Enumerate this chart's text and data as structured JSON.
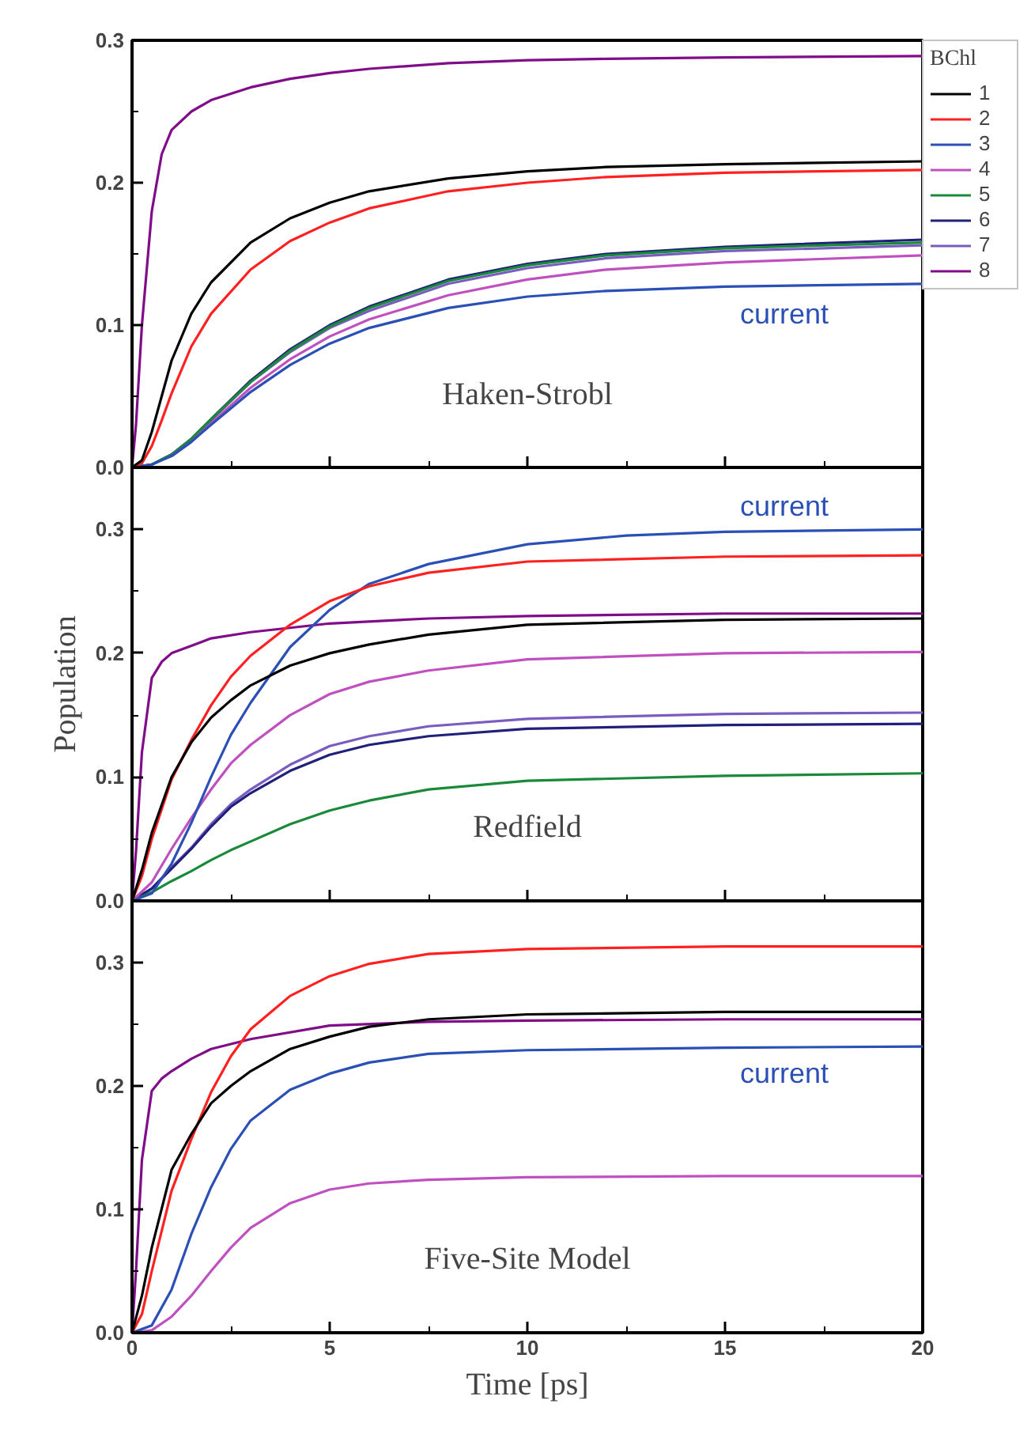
{
  "chart_data": [
    {
      "type": "line",
      "legend": "right",
      "legend_title": "BChl",
      "grid": false,
      "tick_labels": "y",
      "line_style": "solid",
      "xlim": [
        0,
        20
      ],
      "xticks": [
        0,
        {
          "value": 2.5,
          "label": null
        },
        5,
        {
          "value": 7.5,
          "label": null
        },
        10,
        {
          "value": 12.5,
          "label": null
        },
        15,
        {
          "value": 17.5,
          "label": null
        },
        20
      ],
      "ylim": [
        0,
        0.3
      ],
      "yticks": [
        {
          "value": 0,
          "label": "0.0"
        },
        {
          "value": 0.05,
          "label": null
        },
        0.1,
        {
          "value": 0.15,
          "label": null
        },
        0.2,
        {
          "value": 0.25,
          "label": null
        },
        0.3
      ],
      "annotations": [
        "Haken-Strobl",
        "current"
      ],
      "series": [
        {
          "name": "1",
          "color": "#000000",
          "x": [
            0,
            0.25,
            0.5,
            0.75,
            1,
            1.5,
            2,
            3,
            4,
            5,
            6,
            8,
            10,
            12,
            15,
            20
          ],
          "values": [
            0,
            0.005,
            0.025,
            0.05,
            0.075,
            0.108,
            0.13,
            0.158,
            0.175,
            0.186,
            0.194,
            0.203,
            0.208,
            0.211,
            0.213,
            0.215
          ]
        },
        {
          "name": "2",
          "color": "#ff2020",
          "x": [
            0,
            0.25,
            0.5,
            0.75,
            1,
            1.5,
            2,
            3,
            4,
            5,
            6,
            8,
            10,
            12,
            15,
            20
          ],
          "values": [
            0,
            0.003,
            0.015,
            0.033,
            0.052,
            0.085,
            0.108,
            0.139,
            0.159,
            0.172,
            0.182,
            0.194,
            0.2,
            0.204,
            0.207,
            0.209
          ]
        },
        {
          "name": "3",
          "color": "#2a4fb5",
          "x": [
            0,
            0.5,
            1,
            1.5,
            2,
            3,
            4,
            5,
            6,
            8,
            10,
            12,
            15,
            20
          ],
          "values": [
            0,
            0.002,
            0.008,
            0.018,
            0.03,
            0.053,
            0.072,
            0.087,
            0.098,
            0.112,
            0.12,
            0.124,
            0.127,
            0.129
          ]
        },
        {
          "name": "4",
          "color": "#c050c0",
          "x": [
            1,
            1.5,
            2,
            3,
            4,
            5,
            6,
            8,
            10,
            12,
            15,
            20
          ],
          "values": [
            0.008,
            0.018,
            0.031,
            0.056,
            0.076,
            0.092,
            0.104,
            0.121,
            0.132,
            0.139,
            0.144,
            0.149
          ]
        },
        {
          "name": "5",
          "color": "#1a8a3a",
          "x": [
            0,
            0.5,
            1,
            1.5,
            2,
            3,
            4,
            5,
            6,
            8,
            10,
            12,
            15,
            20
          ],
          "values": [
            0,
            0.002,
            0.009,
            0.02,
            0.034,
            0.06,
            0.082,
            0.099,
            0.112,
            0.131,
            0.142,
            0.149,
            0.154,
            0.158
          ]
        },
        {
          "name": "6",
          "color": "#20207a",
          "x": [
            0,
            0.5,
            1,
            1.5,
            2,
            3,
            4,
            5,
            6,
            8,
            10,
            12,
            15,
            20
          ],
          "values": [
            0,
            0.002,
            0.009,
            0.02,
            0.034,
            0.061,
            0.083,
            0.1,
            0.113,
            0.132,
            0.143,
            0.15,
            0.155,
            0.16
          ]
        },
        {
          "name": "7",
          "color": "#7a5cc0",
          "x": [
            0,
            0.5,
            1,
            1.5,
            2,
            3,
            4,
            5,
            6,
            8,
            10,
            12,
            15,
            20
          ],
          "values": [
            0,
            0.002,
            0.009,
            0.02,
            0.033,
            0.06,
            0.081,
            0.098,
            0.11,
            0.129,
            0.14,
            0.147,
            0.152,
            0.156
          ]
        },
        {
          "name": "8",
          "color": "#800c8a",
          "x": [
            0,
            0.1,
            0.25,
            0.5,
            0.75,
            1,
            1.5,
            2,
            3,
            4,
            5,
            6,
            8,
            10,
            12,
            15,
            20
          ],
          "values": [
            0,
            0.03,
            0.1,
            0.18,
            0.22,
            0.237,
            0.25,
            0.258,
            0.267,
            0.273,
            0.277,
            0.28,
            0.284,
            0.286,
            0.287,
            0.288,
            0.289
          ]
        }
      ]
    },
    {
      "type": "line",
      "legend": false,
      "grid": false,
      "tick_labels": "y",
      "line_style": "solid",
      "ylabel": "Population",
      "xlim": [
        0,
        20
      ],
      "xticks": [
        0,
        {
          "value": 2.5,
          "label": null
        },
        5,
        {
          "value": 7.5,
          "label": null
        },
        10,
        {
          "value": 12.5,
          "label": null
        },
        15,
        {
          "value": 17.5,
          "label": null
        },
        20
      ],
      "ylim": [
        0,
        0.35
      ],
      "yticks": [
        {
          "value": 0,
          "label": "0.0"
        },
        {
          "value": 0.05,
          "label": null
        },
        0.1,
        {
          "value": 0.15,
          "label": null
        },
        0.2,
        {
          "value": 0.25,
          "label": null
        },
        0.3
      ],
      "annotations": [
        "Redfield",
        "current"
      ],
      "series": [
        {
          "color": "#000000",
          "x": [
            0,
            0.25,
            0.5,
            1,
            1.5,
            2,
            2.5,
            3,
            4,
            5,
            6,
            7.5,
            10,
            15,
            20
          ],
          "values": [
            0,
            0.025,
            0.055,
            0.1,
            0.128,
            0.148,
            0.162,
            0.174,
            0.19,
            0.2,
            0.207,
            0.215,
            0.223,
            0.227,
            0.228
          ]
        },
        {
          "color": "#ff2020",
          "x": [
            0,
            0.25,
            0.5,
            1,
            1.5,
            2,
            2.5,
            3,
            4,
            5,
            6,
            7.5,
            10,
            15,
            20
          ],
          "values": [
            0,
            0.02,
            0.05,
            0.098,
            0.13,
            0.158,
            0.181,
            0.198,
            0.223,
            0.242,
            0.254,
            0.265,
            0.274,
            0.278,
            0.279
          ]
        },
        {
          "color": "#2a4fb5",
          "x": [
            0,
            0.5,
            1,
            1.5,
            2,
            2.5,
            3,
            4,
            5,
            6,
            7.5,
            10,
            12.5,
            15,
            20
          ],
          "values": [
            0,
            0.006,
            0.03,
            0.063,
            0.1,
            0.134,
            0.16,
            0.205,
            0.235,
            0.256,
            0.272,
            0.288,
            0.295,
            0.298,
            0.3
          ]
        },
        {
          "color": "#c050c0",
          "x": [
            0,
            0.5,
            1,
            1.5,
            2,
            2.5,
            3,
            4,
            5,
            6,
            7.5,
            10,
            15,
            20
          ],
          "values": [
            0,
            0.015,
            0.042,
            0.067,
            0.09,
            0.111,
            0.126,
            0.15,
            0.167,
            0.177,
            0.186,
            0.195,
            0.2,
            0.201
          ]
        },
        {
          "color": "#1a8a3a",
          "x": [
            0,
            0.5,
            1,
            1.5,
            2,
            2.5,
            3,
            4,
            5,
            6,
            7.5,
            10,
            15,
            20
          ],
          "values": [
            0,
            0.007,
            0.016,
            0.024,
            0.033,
            0.041,
            0.048,
            0.062,
            0.073,
            0.081,
            0.09,
            0.097,
            0.101,
            0.103
          ]
        },
        {
          "color": "#20207a",
          "x": [
            0,
            0.5,
            1,
            1.5,
            2,
            2.5,
            3,
            4,
            5,
            6,
            7.5,
            10,
            15,
            20
          ],
          "values": [
            0,
            0.01,
            0.026,
            0.042,
            0.06,
            0.076,
            0.087,
            0.105,
            0.118,
            0.126,
            0.133,
            0.139,
            0.142,
            0.143
          ]
        },
        {
          "color": "#7a5cc0",
          "x": [
            0,
            0.5,
            1,
            1.5,
            2,
            2.5,
            3,
            4,
            5,
            6,
            7.5,
            10,
            15,
            20
          ],
          "values": [
            0,
            0.01,
            0.027,
            0.043,
            0.062,
            0.078,
            0.09,
            0.11,
            0.125,
            0.133,
            0.141,
            0.147,
            0.151,
            0.152
          ]
        },
        {
          "color": "#800c8a",
          "x": [
            0,
            0.1,
            0.25,
            0.5,
            0.75,
            1,
            1.5,
            2,
            3,
            5,
            7.5,
            10,
            15,
            20
          ],
          "values": [
            0,
            0.04,
            0.12,
            0.18,
            0.193,
            0.2,
            0.206,
            0.212,
            0.217,
            0.224,
            0.228,
            0.23,
            0.232,
            0.232
          ]
        }
      ]
    },
    {
      "type": "line",
      "legend": false,
      "grid": false,
      "line_style": "solid",
      "xlabel": "Time [ps]",
      "xlim": [
        0,
        20
      ],
      "xticks": [
        0,
        {
          "value": 2.5,
          "label": null
        },
        5,
        {
          "value": 7.5,
          "label": null
        },
        10,
        {
          "value": 12.5,
          "label": null
        },
        15,
        {
          "value": 17.5,
          "label": null
        },
        20
      ],
      "ylim": [
        0,
        0.35
      ],
      "yticks": [
        {
          "value": 0,
          "label": "0.0"
        },
        {
          "value": 0.05,
          "label": null
        },
        0.1,
        {
          "value": 0.15,
          "label": null
        },
        0.2,
        {
          "value": 0.25,
          "label": null
        },
        0.3
      ],
      "annotations": [
        "Five-Site Model",
        "current"
      ],
      "series": [
        {
          "color": "#000000",
          "x": [
            0,
            0.25,
            0.5,
            1,
            1.5,
            2,
            2.5,
            3,
            4,
            5,
            6,
            7.5,
            10,
            15,
            20
          ],
          "values": [
            0,
            0.03,
            0.069,
            0.132,
            0.161,
            0.186,
            0.2,
            0.212,
            0.23,
            0.24,
            0.248,
            0.254,
            0.258,
            0.26,
            0.26
          ]
        },
        {
          "color": "#ff2020",
          "x": [
            0,
            0.25,
            0.5,
            1,
            1.5,
            2,
            2.5,
            3,
            4,
            5,
            6,
            7.5,
            10,
            15,
            20
          ],
          "values": [
            0,
            0.015,
            0.05,
            0.115,
            0.157,
            0.195,
            0.224,
            0.246,
            0.273,
            0.289,
            0.299,
            0.307,
            0.311,
            0.313,
            0.313
          ]
        },
        {
          "color": "#2a4fb5",
          "x": [
            0,
            0.5,
            1,
            1.5,
            2,
            2.5,
            3,
            4,
            5,
            6,
            7.5,
            10,
            15,
            20
          ],
          "values": [
            0,
            0.006,
            0.035,
            0.08,
            0.118,
            0.149,
            0.172,
            0.197,
            0.21,
            0.219,
            0.226,
            0.229,
            0.231,
            0.232
          ]
        },
        {
          "color": "#c050c0",
          "x": [
            0,
            0.5,
            1,
            1.5,
            2,
            2.5,
            3,
            4,
            5,
            6,
            7.5,
            10,
            15,
            20
          ],
          "values": [
            0,
            0.002,
            0.013,
            0.03,
            0.05,
            0.069,
            0.085,
            0.105,
            0.116,
            0.121,
            0.124,
            0.126,
            0.127,
            0.127
          ]
        },
        {
          "color": "#800c8a",
          "x": [
            0,
            0.1,
            0.25,
            0.5,
            0.75,
            1,
            1.5,
            2,
            3,
            5,
            7.5,
            10,
            15,
            20
          ],
          "values": [
            0,
            0.05,
            0.14,
            0.196,
            0.206,
            0.212,
            0.222,
            0.23,
            0.238,
            0.249,
            0.252,
            0.253,
            0.254,
            0.254
          ]
        }
      ]
    }
  ]
}
